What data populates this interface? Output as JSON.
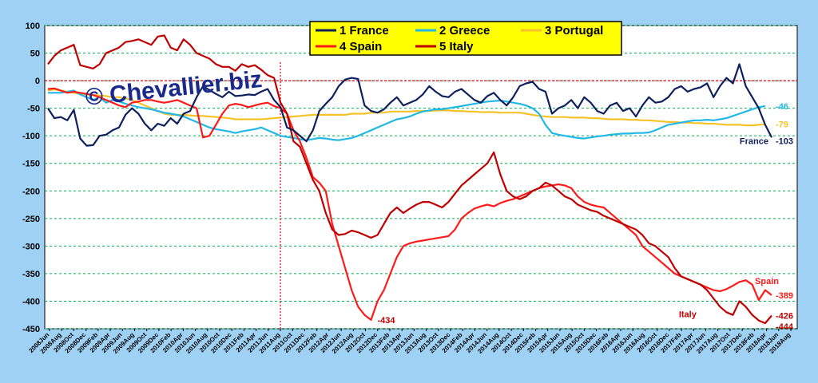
{
  "chart_data": {
    "type": "line",
    "ylim": [
      -450,
      100
    ],
    "y_ticks": [
      "100",
      "50",
      "0",
      "-50",
      "-100",
      "-150",
      "-200",
      "-250",
      "-300",
      "-350",
      "-400",
      "-450"
    ],
    "x_tick_labels": [
      "2008Jun",
      "2008Aug",
      "2008Oct",
      "2008Dec",
      "2009Feb",
      "2009Apr",
      "2009Jun",
      "2009Aug",
      "2009Oct",
      "2009Dec",
      "2010Feb",
      "2010Apr",
      "2010Jun",
      "2010Aug",
      "2010Oct",
      "2010Dec",
      "2011Feb",
      "2011Apr",
      "2011Jun",
      "2011Aug",
      "2011Oct",
      "2011Dec",
      "2012Feb",
      "2012Apr",
      "2012Jun",
      "2012Aug",
      "2012Oct",
      "2012Dec",
      "2013Feb",
      "2013Apr",
      "2013Jun",
      "2013Aug",
      "2013Oct",
      "2013Dec",
      "2014Feb",
      "2014Apr",
      "2014Jun",
      "2014Aug",
      "2014Oct",
      "2014Dec",
      "2015Feb",
      "2015Apr",
      "2015Jun",
      "2015Aug",
      "2015Oct",
      "2015Dec",
      "2016Feb",
      "2016Apr",
      "2016Jun",
      "2016Aug",
      "2016Oct",
      "2016Dec",
      "2017Feb",
      "2017Apr",
      "2017Jun",
      "2017Aug",
      "2017Oct",
      "2017Dec",
      "2018Feb",
      "2018Apr",
      "2018Jun",
      "2018Aug"
    ],
    "vline_label_at": "2011Aug",
    "series": [
      {
        "name": "1 France",
        "color": "#0d1f5c",
        "end_label": "-103",
        "values": [
          -50,
          -68,
          -66,
          -72,
          -53,
          -105,
          -118,
          -117,
          -100,
          -98,
          -90,
          -85,
          -62,
          -50,
          -60,
          -78,
          -90,
          -78,
          -82,
          -68,
          -78,
          -60,
          -55,
          -30,
          -10,
          -17,
          -24,
          -30,
          -20,
          -28,
          -27,
          -25,
          -26,
          -20,
          -15,
          -35,
          -48,
          -85,
          -90,
          -100,
          -110,
          -90,
          -55,
          -42,
          -30,
          -10,
          2,
          5,
          3,
          -45,
          -55,
          -58,
          -52,
          -40,
          -30,
          -45,
          -40,
          -35,
          -25,
          -10,
          -20,
          -28,
          -30,
          -20,
          -15,
          -25,
          -35,
          -40,
          -28,
          -22,
          -35,
          -45,
          -30,
          -10,
          -5,
          -2,
          -15,
          -20,
          -60,
          -50,
          -45,
          -35,
          -50,
          -30,
          -40,
          -55,
          -60,
          -45,
          -40,
          -55,
          -50,
          -65,
          -45,
          -30,
          -40,
          -38,
          -30,
          -15,
          -10,
          -20,
          -15,
          -12,
          -5,
          -30,
          -10,
          5,
          -5,
          30,
          -10,
          -30,
          -50,
          -80,
          -103
        ]
      },
      {
        "name": "2 Greece",
        "color": "#21b7e6",
        "end_label": "-46",
        "values": [
          -22,
          -22,
          -22,
          -20,
          -18,
          -25,
          -30,
          -35,
          -30,
          -40,
          -35,
          -38,
          -42,
          -45,
          -48,
          -50,
          -52,
          -55,
          -58,
          -60,
          -62,
          -65,
          -70,
          -75,
          -80,
          -85,
          -88,
          -90,
          -92,
          -95,
          -92,
          -90,
          -88,
          -85,
          -90,
          -95,
          -100,
          -102,
          -104,
          -106,
          -108,
          -106,
          -104,
          -105,
          -107,
          -108,
          -106,
          -104,
          -100,
          -95,
          -90,
          -85,
          -80,
          -75,
          -70,
          -68,
          -65,
          -60,
          -56,
          -54,
          -52,
          -52,
          -50,
          -48,
          -46,
          -44,
          -42,
          -40,
          -38,
          -37,
          -36,
          -38,
          -40,
          -42,
          -45,
          -50,
          -60,
          -80,
          -95,
          -98,
          -100,
          -102,
          -104,
          -105,
          -103,
          -101,
          -100,
          -98,
          -97,
          -96,
          -96,
          -95,
          -95,
          -94,
          -90,
          -85,
          -80,
          -78,
          -76,
          -74,
          -72,
          -72,
          -71,
          -72,
          -70,
          -68,
          -64,
          -60,
          -56,
          -52,
          -48,
          -46
        ]
      },
      {
        "name": "3 Portugal",
        "color": "#f5c22a",
        "end_label": "-79",
        "values": [
          -18,
          -16,
          -18,
          -20,
          -22,
          -24,
          -25,
          -26,
          -27,
          -28,
          -30,
          -30,
          -32,
          -35,
          -40,
          -45,
          -50,
          -55,
          -60,
          -62,
          -62,
          -62,
          -63,
          -64,
          -64,
          -65,
          -66,
          -67,
          -68,
          -70,
          -70,
          -70,
          -70,
          -70,
          -69,
          -68,
          -67,
          -66,
          -65,
          -64,
          -63,
          -62,
          -62,
          -62,
          -62,
          -62,
          -62,
          -60,
          -60,
          -60,
          -58,
          -58,
          -58,
          -56,
          -56,
          -56,
          -56,
          -55,
          -55,
          -55,
          -54,
          -54,
          -54,
          -55,
          -55,
          -56,
          -56,
          -57,
          -57,
          -57,
          -58,
          -58,
          -58,
          -58,
          -60,
          -62,
          -64,
          -65,
          -66,
          -66,
          -66,
          -67,
          -67,
          -67,
          -68,
          -68,
          -69,
          -70,
          -70,
          -70,
          -71,
          -71,
          -72,
          -72,
          -73,
          -74,
          -75,
          -75,
          -76,
          -76,
          -77,
          -77,
          -78,
          -78,
          -79,
          -80,
          -80,
          -80,
          -81,
          -81,
          -80,
          -79
        ]
      },
      {
        "name": "4 Spain",
        "color": "#ff1a1a",
        "end_label": "-389",
        "values": [
          -15,
          -14,
          -18,
          -22,
          -20,
          -22,
          -24,
          -26,
          -30,
          -35,
          -40,
          -45,
          -48,
          -40,
          -38,
          -35,
          -35,
          -38,
          -40,
          -38,
          -35,
          -40,
          -45,
          -50,
          -103,
          -100,
          -80,
          -60,
          -45,
          -42,
          -44,
          -48,
          -45,
          -42,
          -40,
          -46,
          -50,
          -60,
          -90,
          -110,
          -140,
          -175,
          -185,
          -200,
          -260,
          -300,
          -340,
          -380,
          -410,
          -425,
          -434,
          -400,
          -380,
          -350,
          -320,
          -300,
          -295,
          -292,
          -290,
          -288,
          -286,
          -284,
          -282,
          -270,
          -250,
          -240,
          -232,
          -228,
          -225,
          -228,
          -222,
          -218,
          -215,
          -210,
          -205,
          -200,
          -195,
          -192,
          -190,
          -188,
          -190,
          -195,
          -210,
          -220,
          -225,
          -228,
          -230,
          -240,
          -250,
          -260,
          -270,
          -280,
          -300,
          -310,
          -320,
          -330,
          -340,
          -350,
          -355,
          -360,
          -365,
          -370,
          -375,
          -380,
          -382,
          -378,
          -372,
          -365,
          -362,
          -370,
          -398,
          -380,
          -389
        ]
      },
      {
        "name": "5 Italy",
        "color": "#c00000",
        "end_label": "-426",
        "values": [
          30,
          45,
          55,
          60,
          65,
          28,
          25,
          22,
          30,
          50,
          55,
          60,
          70,
          72,
          75,
          70,
          65,
          80,
          82,
          60,
          55,
          75,
          65,
          50,
          45,
          40,
          30,
          25,
          25,
          18,
          30,
          25,
          28,
          20,
          10,
          5,
          -40,
          -60,
          -110,
          -120,
          -150,
          -180,
          -200,
          -240,
          -270,
          -280,
          -278,
          -272,
          -275,
          -280,
          -285,
          -280,
          -260,
          -240,
          -230,
          -240,
          -232,
          -225,
          -220,
          -220,
          -225,
          -230,
          -220,
          -205,
          -190,
          -180,
          -170,
          -160,
          -150,
          -130,
          -170,
          -200,
          -210,
          -215,
          -210,
          -200,
          -195,
          -185,
          -190,
          -200,
          -210,
          -215,
          -225,
          -230,
          -235,
          -238,
          -245,
          -250,
          -255,
          -260,
          -265,
          -270,
          -280,
          -295,
          -300,
          -310,
          -320,
          -340,
          -355,
          -360,
          -365,
          -370,
          -380,
          -395,
          -410,
          -420,
          -425,
          -400,
          -410,
          -425,
          -435,
          -440,
          -426
        ]
      }
    ],
    "annotations": [
      {
        "text": "-434",
        "color": "#c00000"
      },
      {
        "text": "Spain",
        "color": "#ff1a1a"
      },
      {
        "text": "Italy",
        "color": "#c00000"
      },
      {
        "text": "France",
        "color": "#0d1f5c"
      },
      {
        "text": "-444",
        "color": "#c00000"
      }
    ]
  },
  "watermark": "© Chevallier.biz"
}
